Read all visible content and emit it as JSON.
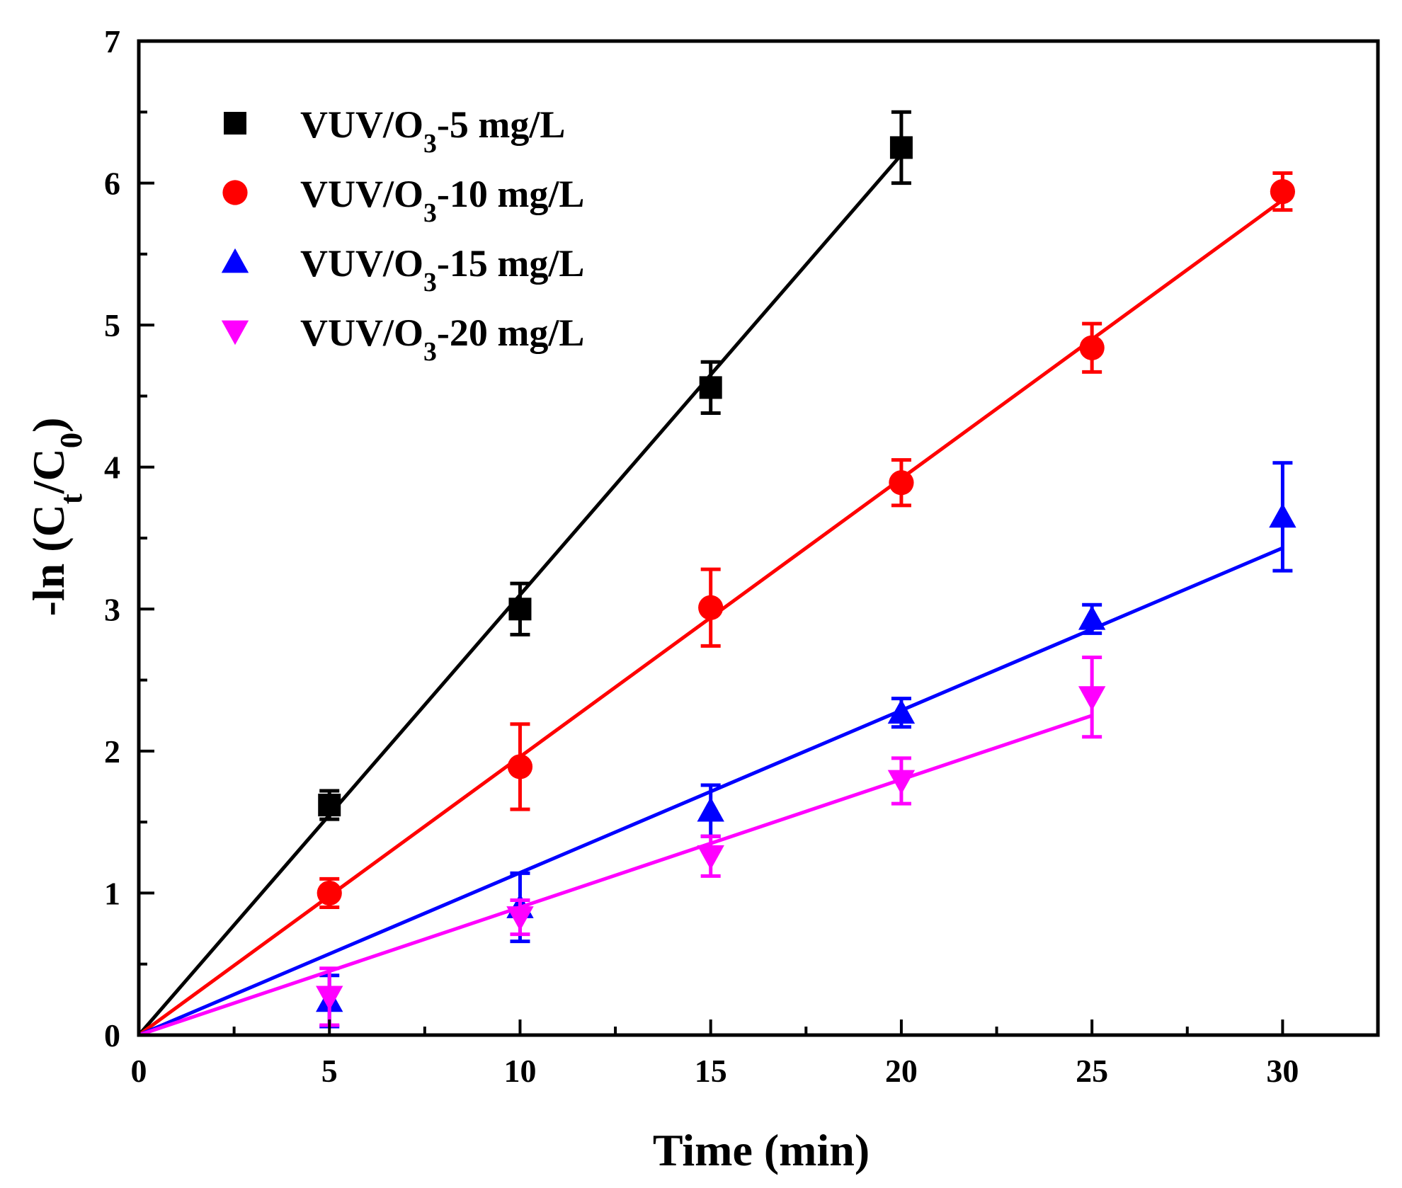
{
  "chart_data": {
    "type": "scatter",
    "title": "",
    "xlabel": "Time (min)",
    "ylabel_parts": [
      "-ln (C",
      "t",
      "/C",
      "0",
      ")"
    ],
    "xlim": [
      0,
      32.5
    ],
    "ylim": [
      0,
      7
    ],
    "x_ticks": [
      0,
      5,
      10,
      15,
      20,
      25,
      30
    ],
    "y_ticks": [
      0,
      1,
      2,
      3,
      4,
      5,
      6,
      7
    ],
    "legend_position": "top-left",
    "series": [
      {
        "name": "VUV/O3-5 mg/L",
        "label_parts": [
          "VUV/O",
          "3",
          "-5 mg/L"
        ],
        "color": "#000000",
        "marker": "square",
        "x": [
          5,
          10,
          15,
          20
        ],
        "y": [
          1.62,
          3.0,
          4.56,
          6.25
        ],
        "error": [
          0.1,
          0.18,
          0.18,
          0.25
        ],
        "fit_end": [
          20,
          6.2
        ]
      },
      {
        "name": "VUV/O3-10 mg/L",
        "label_parts": [
          "VUV/O",
          "3",
          "-10 mg/L"
        ],
        "color": "#ff0000",
        "marker": "circle",
        "x": [
          5,
          10,
          15,
          20,
          25,
          30
        ],
        "y": [
          1.0,
          1.89,
          3.01,
          3.89,
          4.84,
          5.94
        ],
        "error": [
          0.1,
          0.3,
          0.27,
          0.16,
          0.17,
          0.13
        ],
        "fit_end": [
          30,
          5.88
        ]
      },
      {
        "name": "VUV/O3-15 mg/L",
        "label_parts": [
          "VUV/O",
          "3",
          "-15 mg/L"
        ],
        "color": "#0000ff",
        "marker": "triangle-up",
        "x": [
          5,
          10,
          15,
          20,
          25,
          30
        ],
        "y": [
          0.24,
          0.9,
          1.58,
          2.27,
          2.93,
          3.65
        ],
        "error": [
          0.18,
          0.24,
          0.18,
          0.1,
          0.1,
          0.38
        ],
        "fit_end": [
          30,
          3.43
        ]
      },
      {
        "name": "VUV/O3-20 mg/L",
        "label_parts": [
          "VUV/O",
          "3",
          "-20 mg/L"
        ],
        "color": "#ff00ff",
        "marker": "triangle-down",
        "x": [
          5,
          10,
          15,
          20,
          25
        ],
        "y": [
          0.27,
          0.83,
          1.26,
          1.79,
          2.38
        ],
        "error": [
          0.2,
          0.12,
          0.14,
          0.16,
          0.28
        ],
        "fit_end": [
          25,
          2.25
        ]
      }
    ]
  }
}
